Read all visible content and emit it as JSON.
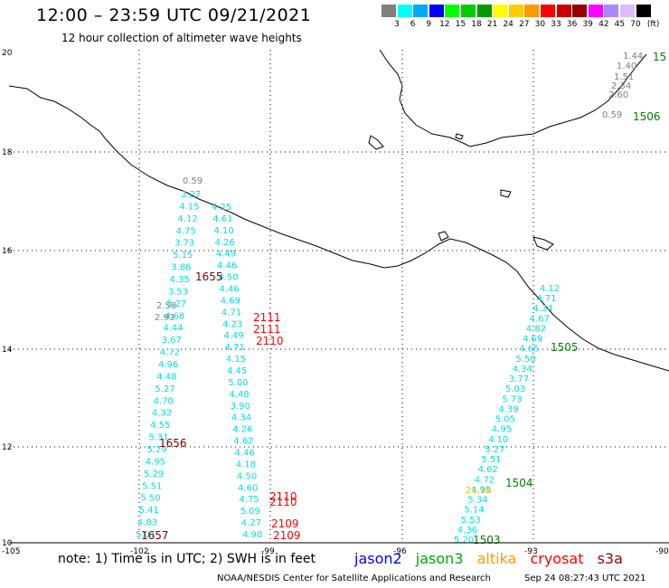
{
  "title": "12:00 – 23:59 UTC 09/21/2021",
  "subtitle": "12 hour collection of altimeter wave heights",
  "legend": {
    "unit": "(ft)",
    "colors": [
      "#808080",
      "#00ffff",
      "#00aaff",
      "#0000ff",
      "#00ff00",
      "#00cc00",
      "#009900",
      "#ffff00",
      "#ffcc00",
      "#ff9900",
      "#ff0000",
      "#cc0000",
      "#990000",
      "#ff00ff",
      "#aa88ff",
      "#ddbbff",
      "#000000"
    ],
    "labels": [
      "3",
      "6",
      "9",
      "12",
      "15",
      "18",
      "21",
      "24",
      "27",
      "30",
      "33",
      "36",
      "39",
      "42",
      "45",
      "70"
    ]
  },
  "axes": {
    "lon_labels": [
      "-105",
      "-102",
      "-99",
      "-96",
      "-93",
      "-90"
    ],
    "lat_labels": [
      "20",
      "18",
      "16",
      "14",
      "12",
      "10"
    ]
  },
  "tracks": [
    {
      "name": "track-west",
      "color": "#00e0e0",
      "values": [
        "3.27",
        "4.15",
        "4.12",
        "4.75",
        "3.73",
        "5.15",
        "3.86",
        "4.35",
        "3.53",
        "3.27",
        "4.68",
        "4.44",
        "3.67",
        "4.72",
        "4.96",
        "4.48",
        "5.27",
        "4.70",
        "4.32",
        "4.55",
        "5.31",
        "5.29",
        "4.95",
        "5.29",
        "5.51",
        "5.50",
        "5.41",
        "4.83",
        "5.01"
      ]
    },
    {
      "name": "track-west-gray",
      "color": "#808080",
      "values": [
        "0.59",
        "2.58",
        "2.93"
      ]
    },
    {
      "name": "track-middle",
      "color": "#00e0e0",
      "values": [
        "4.25",
        "4.61",
        "4.10",
        "4.26",
        "4.49",
        "4.46",
        "4.50",
        "4.46",
        "4.69",
        "4.71",
        "4.23",
        "4.49",
        "4.71",
        "4.15",
        "4.45",
        "5.00",
        "4.48",
        "3.90",
        "4.34",
        "4.26",
        "4.62",
        "4.46",
        "4.18",
        "4.50",
        "4.60",
        "4.75",
        "5.09",
        "4.27",
        "4.90"
      ]
    },
    {
      "name": "track-east",
      "color": "#00e0e0",
      "values": [
        "4.12",
        "4.71",
        "4.34",
        "4.67",
        "4.82",
        "4.69",
        "4.65",
        "5.50",
        "4.34",
        "3.77",
        "5.03",
        "5.73",
        "4.39",
        "5.05",
        "4.95",
        "4.10",
        "5.27",
        "5.51",
        "4.62",
        "4.72",
        "4.95",
        "5.34",
        "5.14",
        "5.53",
        "4.36",
        "5.20"
      ]
    },
    {
      "name": "track-east-yellow",
      "color": "#e8c000",
      "values": [
        "21.18"
      ]
    },
    {
      "name": "track-northeast",
      "color": "#808080",
      "values": [
        "1.44",
        "1.40",
        "1.51",
        "2.34",
        "2.60",
        "0.59"
      ]
    }
  ],
  "time_labels": [
    {
      "text": "1655",
      "color": "#800000"
    },
    {
      "text": "2111",
      "color": "#ff0000"
    },
    {
      "text": "2111",
      "color": "#ff0000"
    },
    {
      "text": "2110",
      "color": "#ff0000"
    },
    {
      "text": "1656",
      "color": "#800000"
    },
    {
      "text": "2110",
      "color": "#ff0000"
    },
    {
      "text": "2110",
      "color": "#ff0000"
    },
    {
      "text": "2109",
      "color": "#ff0000"
    },
    {
      "text": "2109",
      "color": "#ff0000"
    },
    {
      "text": "1657",
      "color": "#800000"
    },
    {
      "text": "1505",
      "color": "#008000"
    },
    {
      "text": "1504",
      "color": "#008000"
    },
    {
      "text": "1503",
      "color": "#008000"
    },
    {
      "text": "1506",
      "color": "#008000"
    },
    {
      "text": "15",
      "color": "#008000"
    }
  ],
  "note": "note:  1) Time is in UTC;  2) SWH is in feet",
  "satellites": [
    {
      "name": "jason2",
      "color": "#0000ff"
    },
    {
      "name": "jason3",
      "color": "#00aa00"
    },
    {
      "name": "altika",
      "color": "#ff9900"
    },
    {
      "name": "cryosat",
      "color": "#ff0000"
    },
    {
      "name": "s3a",
      "color": "#990000"
    }
  ],
  "credit": "NOAA/NESDIS Center for Satellite Applications and Research",
  "timestamp": "Sep 24 08:27:43 UTC 2021"
}
